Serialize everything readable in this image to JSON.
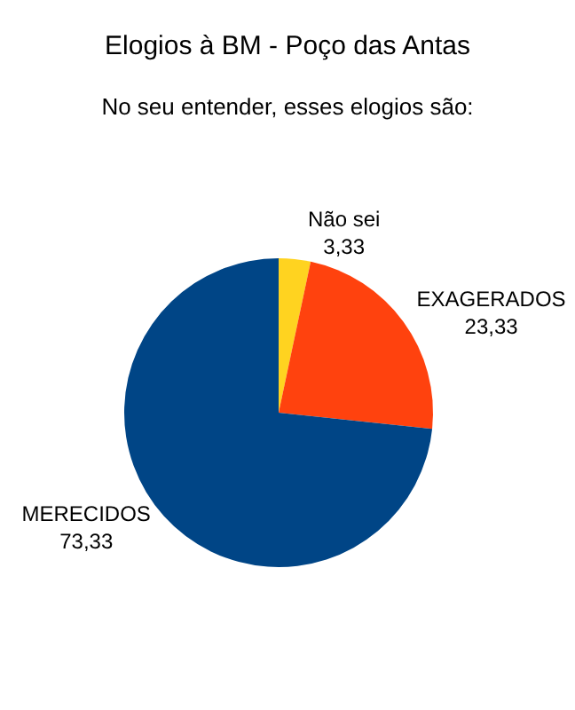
{
  "chart_data": {
    "type": "pie",
    "title": "Elogios à BM - Poço das Antas",
    "subtitle": "No seu entender, esses elogios são:",
    "categories": [
      "Não sei",
      "EXAGERADOS",
      "MERECIDOS"
    ],
    "values": [
      3.33,
      23.33,
      73.33
    ],
    "colors": [
      "#ffd320",
      "#ff420e",
      "#004586"
    ],
    "value_labels": [
      "3,33",
      "23,33",
      "73,33"
    ],
    "legend": false
  }
}
